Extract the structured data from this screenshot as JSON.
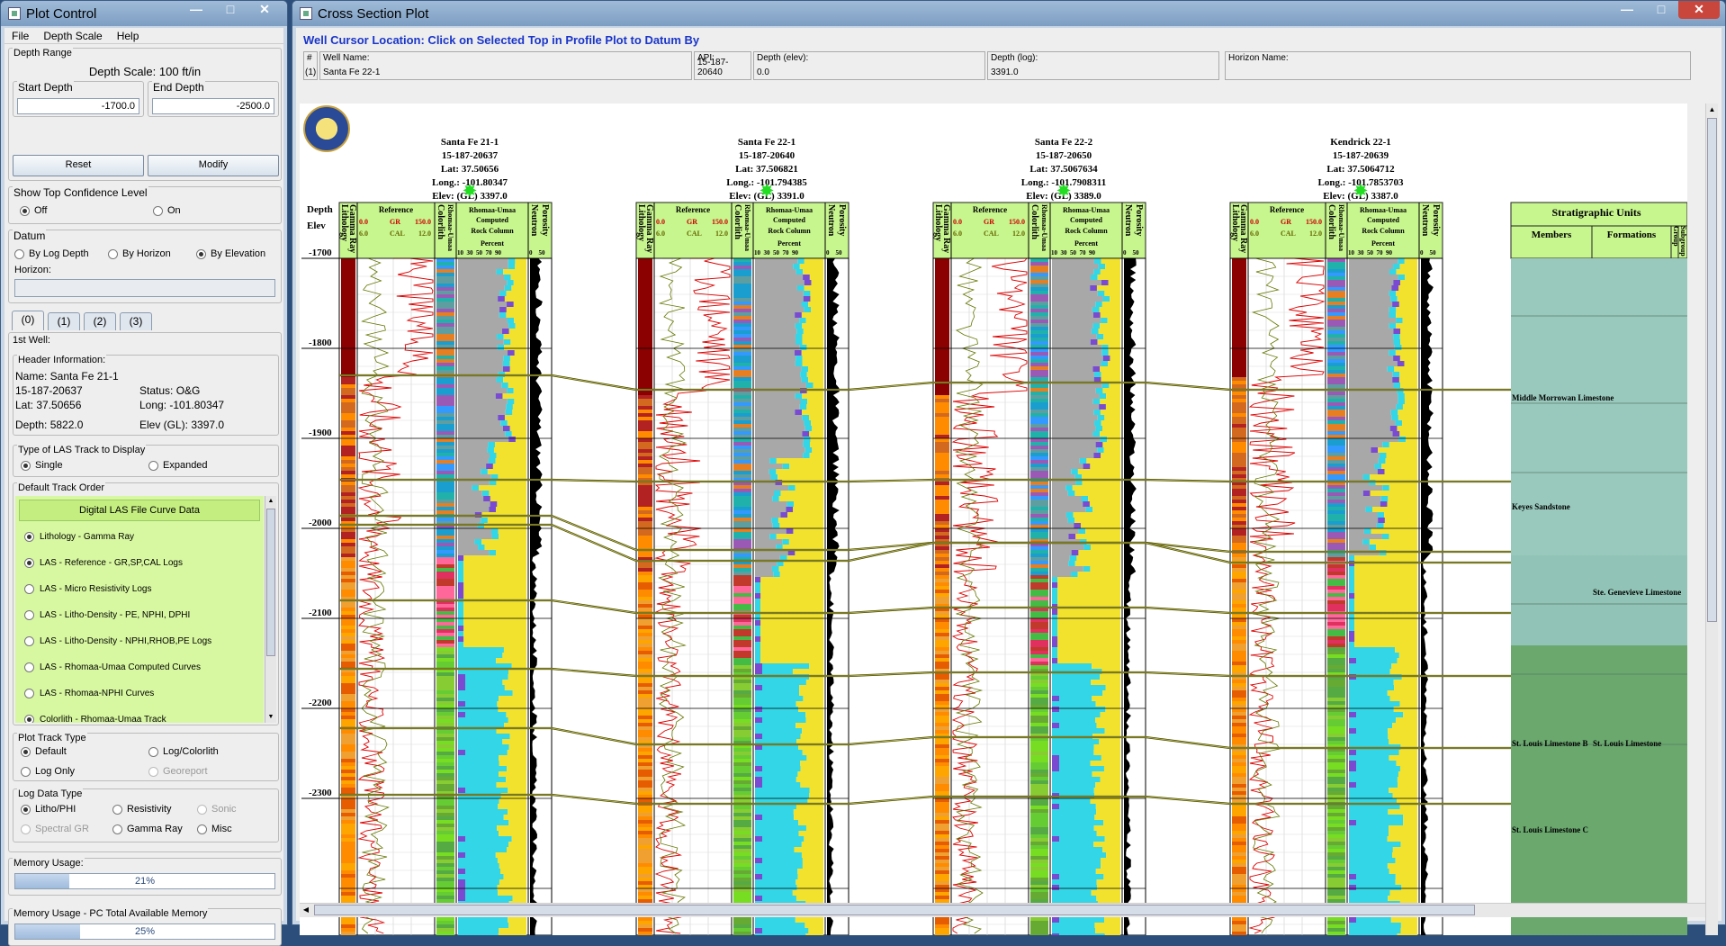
{
  "plot_control": {
    "title": "Plot Control",
    "menu": [
      "File",
      "Depth Scale",
      "Help"
    ],
    "depth_range": {
      "label": "Depth Range",
      "scale": "Depth Scale: 100 ft/in",
      "start_label": "Start Depth",
      "start_value": "-1700.0",
      "end_label": "End Depth",
      "end_value": "-2500.0",
      "reset": "Reset",
      "modify": "Modify"
    },
    "confidence": {
      "label": "Show Top Confidence Level",
      "off": "Off",
      "on": "On"
    },
    "datum": {
      "label": "Datum",
      "by_log_depth": "By Log Depth",
      "by_horizon": "By Horizon",
      "by_elevation": "By Elevation",
      "horizon_label": "Horizon:",
      "horizon_value": ""
    },
    "tabs": [
      "(0)",
      "(1)",
      "(2)",
      "(3)"
    ],
    "well": {
      "heading": "1st Well:",
      "header_info": "Header Information:",
      "name": "Name: Santa Fe 21-1",
      "api": "15-187-20637",
      "status": "Status: O&G",
      "lat": "Lat: 37.50656",
      "long": "Long: -101.80347",
      "depth": "Depth: 5822.0",
      "elev": "Elev (GL): 3397.0"
    },
    "las_track": {
      "label": "Type of LAS Track to Display",
      "single": "Single",
      "expanded": "Expanded"
    },
    "track_order": {
      "label": "Default Track Order",
      "header": "Digital LAS File Curve Data",
      "items": [
        {
          "label": "Lithology - Gamma Ray",
          "on": true
        },
        {
          "label": "LAS - Reference - GR,SP,CAL Logs",
          "on": true
        },
        {
          "label": "LAS - Micro Resistivity Logs",
          "on": false
        },
        {
          "label": "LAS - Litho-Density - PE, NPHI, DPHI",
          "on": false
        },
        {
          "label": "LAS - Litho-Density - NPHI,RHOB,PE Logs",
          "on": false
        },
        {
          "label": "LAS - Rhomaa-Umaa Computed Curves",
          "on": false
        },
        {
          "label": "LAS - Rhomaa-NPHI Curves",
          "on": false
        },
        {
          "label": "Colorlith - Rhomaa-Umaa Track",
          "on": true
        }
      ]
    },
    "plot_track_type": {
      "label": "Plot Track Type",
      "default": "Default",
      "log_colorlith": "Log/Colorlith",
      "log_only": "Log Only",
      "georeport": "Georeport"
    },
    "log_data_type": {
      "label": "Log Data Type",
      "litho_phi": "Litho/PHI",
      "resistivity": "Resistivity",
      "sonic": "Sonic",
      "spectral_gr": "Spectral GR",
      "gamma_ray": "Gamma Ray",
      "misc": "Misc"
    },
    "memory": {
      "label": "Memory Usage:",
      "value": "21%",
      "fraction": 0.21
    },
    "memory_pc": {
      "label": "Memory Usage - PC Total Available Memory",
      "value": "25%",
      "fraction": 0.25
    }
  },
  "cross_section": {
    "title": "Cross Section Plot",
    "instruction": "Well Cursor Location: Click on Selected Top in Profile Plot to Datum By",
    "cursor": {
      "num_label": "#",
      "num_value": "(1)",
      "well_label": "Well Name:",
      "well_value": "Santa Fe 22-1",
      "api_label": "API:",
      "api_value": "15-187-20640",
      "depth_elev_label": "Depth (elev):",
      "depth_elev_value": "0.0",
      "depth_log_label": "Depth (log):",
      "depth_log_value": "3391.0",
      "horizon_label": "Horizon Name:",
      "horizon_value": ""
    },
    "depth_axis": {
      "title1": "Depth",
      "title2": "Elev",
      "ticks": [
        "-1700",
        "-1800",
        "-1900",
        "-2000",
        "-2100",
        "-2200",
        "-2300"
      ]
    },
    "track_labels": {
      "lithology": "Lithology",
      "gamma_ray": "Gamma Ray",
      "reference": "Reference",
      "gr": "GR",
      "cal": "CAL",
      "gr_min": "0.0",
      "gr_max": "150.0",
      "cal_min": "6.0",
      "cal_max": "12.0",
      "colorlith": "Colorlith",
      "rhomaa_umaa": "Rhomaa-Umaa",
      "ru_title": "Rhomaa-Umaa",
      "computed": "Computed",
      "rock_column": "Rock Column",
      "percent": "Percent",
      "pct_ticks": "10  30  50  70  90",
      "neutron": "Neutron",
      "porosity": "Porosity",
      "por_ticks": "0    50"
    },
    "wells": [
      {
        "name": "Santa Fe 21-1",
        "api": "15-187-20637",
        "lat": "Lat: 37.50656",
        "long": "Long.: -101.80347",
        "elev": "Elev: (GL) 3397.0"
      },
      {
        "name": "Santa Fe 22-1",
        "api": "15-187-20640",
        "lat": "Lat: 37.506821",
        "long": "Long.: -101.794385",
        "elev": "Elev: (GL) 3391.0"
      },
      {
        "name": "Santa Fe 22-2",
        "api": "15-187-20650",
        "lat": "Lat: 37.5067634",
        "long": "Long.: -101.7908311",
        "elev": "Elev: (GL) 3389.0"
      },
      {
        "name": "Kendrick 22-1",
        "api": "15-187-20639",
        "lat": "Lat: 37.5064712",
        "long": "Long.: -101.7853703",
        "elev": "Elev: (GL) 3387.0"
      }
    ],
    "strat": {
      "title": "Stratigraphic Units",
      "members": "Members",
      "formations": "Formations",
      "group": "Group",
      "subgroup": "Subgroup",
      "units": [
        {
          "text": "Middle Morrowan Limestone",
          "col": "members"
        },
        {
          "text": "Keyes Sandstone",
          "col": "members"
        },
        {
          "text": "Ste. Genevieve Limestone",
          "col": "formations"
        },
        {
          "text": "St. Louis Limestone B",
          "col": "members"
        },
        {
          "text": "St. Louis Limestone",
          "col": "formations"
        },
        {
          "text": "St. Louis Limestone C",
          "col": "members"
        }
      ]
    }
  }
}
